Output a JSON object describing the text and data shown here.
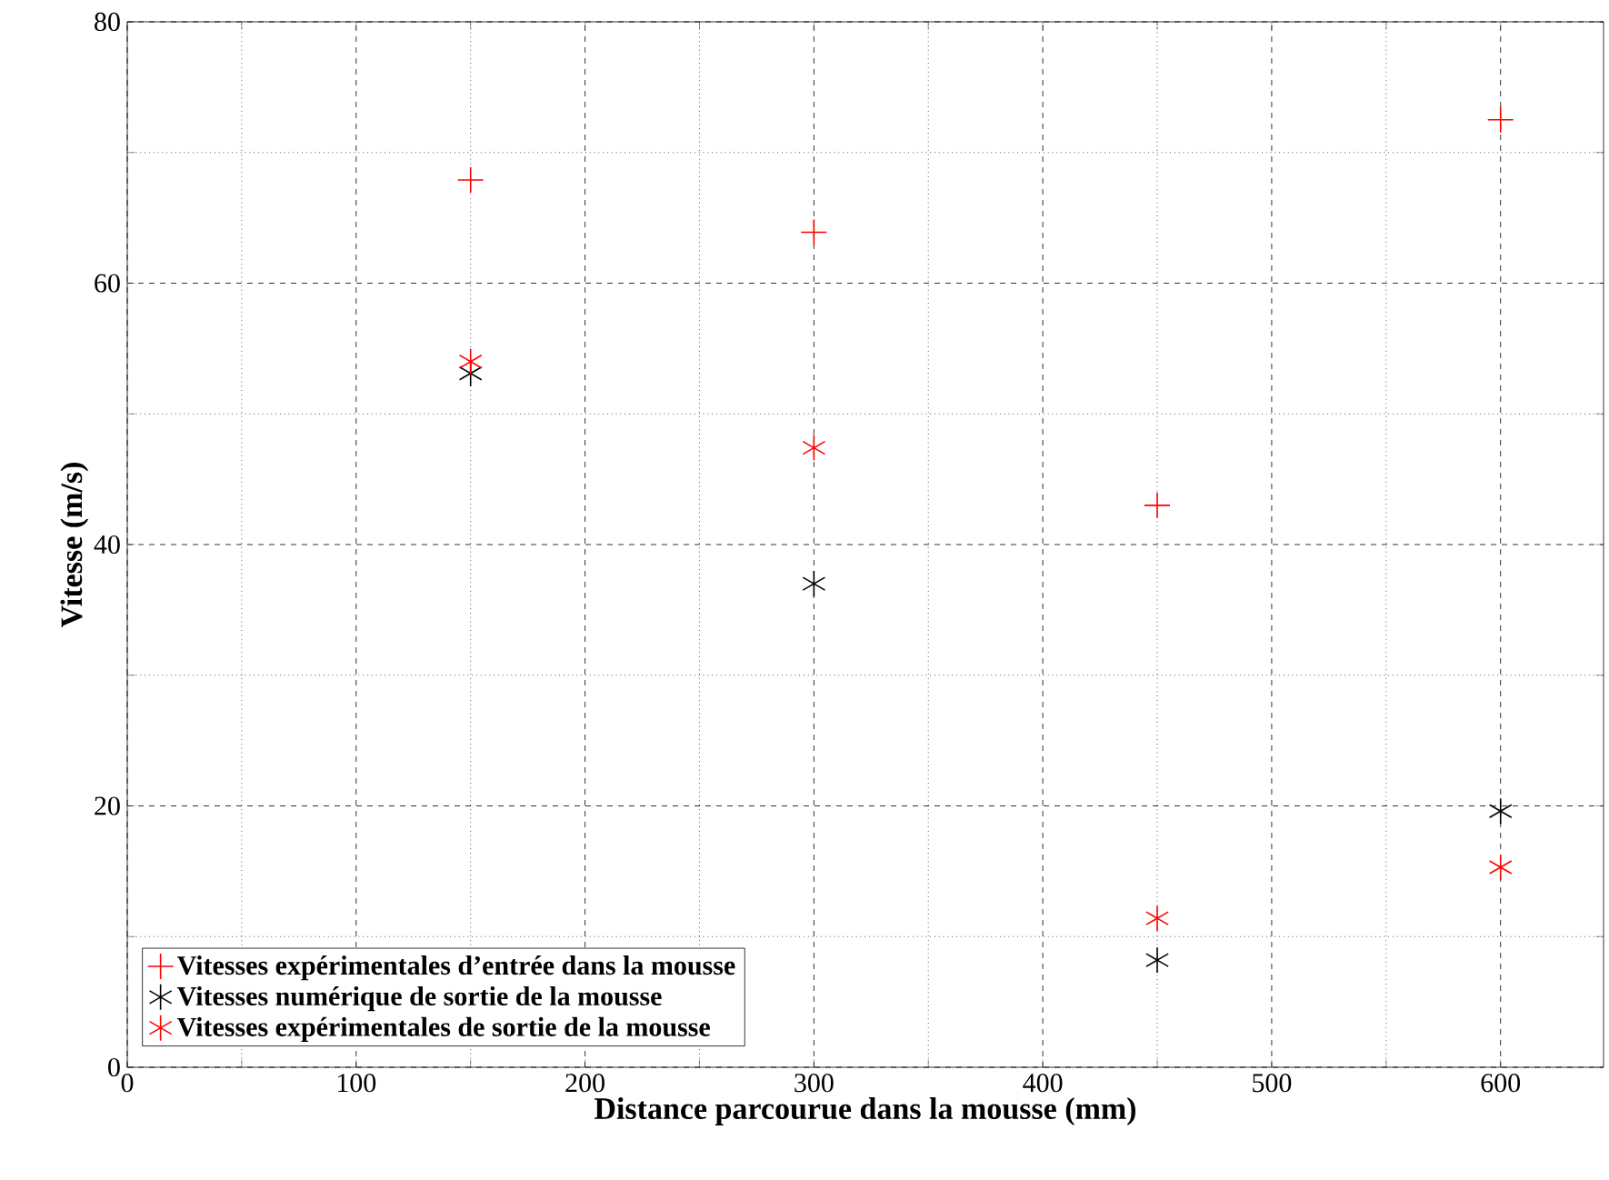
{
  "chart_data": {
    "type": "scatter",
    "xlabel": "Distance parcourue dans la mousse (mm)",
    "ylabel": "Vitesse (m/s)",
    "xlim": [
      0,
      645
    ],
    "ylim": [
      0,
      80
    ],
    "xticks": [
      0,
      {
        "value": 50,
        "label": null
      },
      100,
      {
        "value": 150,
        "label": null
      },
      200,
      {
        "value": 250,
        "label": null
      },
      300,
      {
        "value": 350,
        "label": null
      },
      400,
      {
        "value": 450,
        "label": null
      },
      500,
      {
        "value": 550,
        "label": null
      },
      600
    ],
    "yticks": [
      0,
      {
        "value": 10,
        "label": null
      },
      20,
      {
        "value": 30,
        "label": null
      },
      40,
      {
        "value": 50,
        "label": null
      },
      60,
      {
        "value": 70,
        "label": null
      },
      80
    ],
    "grid": true,
    "legend": "bottom left",
    "series": [
      {
        "name": "Vitesses expérimentales d’entrée dans la mousse",
        "color": "#ff0000",
        "marker": "cross",
        "x": [
          150,
          300,
          450,
          600
        ],
        "values": [
          67.9,
          63.9,
          43.0,
          72.5
        ]
      },
      {
        "name": "Vitesses numérique de sortie de la mousse",
        "color": "#000000",
        "marker": "cross",
        "x": [
          150,
          300,
          450,
          600
        ],
        "values": [
          53.1,
          37.0,
          8.2,
          19.6
        ]
      },
      {
        "name": "Vitesses expérimentales de sortie de la mousse",
        "color": "#ff0000",
        "marker": "cross",
        "x": [
          150,
          300,
          450,
          600
        ],
        "values": [
          54.0,
          47.4,
          11.4,
          15.3
        ]
      }
    ]
  }
}
